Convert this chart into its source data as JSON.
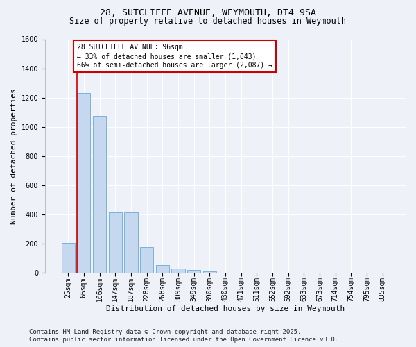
{
  "title_line1": "28, SUTCLIFFE AVENUE, WEYMOUTH, DT4 9SA",
  "title_line2": "Size of property relative to detached houses in Weymouth",
  "xlabel": "Distribution of detached houses by size in Weymouth",
  "ylabel": "Number of detached properties",
  "categories": [
    "25sqm",
    "66sqm",
    "106sqm",
    "147sqm",
    "187sqm",
    "228sqm",
    "268sqm",
    "309sqm",
    "349sqm",
    "390sqm",
    "430sqm",
    "471sqm",
    "511sqm",
    "552sqm",
    "592sqm",
    "633sqm",
    "673sqm",
    "714sqm",
    "754sqm",
    "795sqm",
    "835sqm"
  ],
  "values": [
    205,
    1230,
    1075,
    415,
    415,
    175,
    50,
    30,
    18,
    10,
    0,
    0,
    0,
    0,
    0,
    0,
    0,
    0,
    0,
    0,
    0
  ],
  "bar_color": "#c5d8f0",
  "bar_edge_color": "#6aaad4",
  "vline_color": "#cc0000",
  "vline_xindex": 1,
  "ylim": [
    0,
    1600
  ],
  "yticks": [
    0,
    200,
    400,
    600,
    800,
    1000,
    1200,
    1400,
    1600
  ],
  "annotation_text_line1": "28 SUTCLIFFE AVENUE: 96sqm",
  "annotation_text_line2": "← 33% of detached houses are smaller (1,043)",
  "annotation_text_line3": "66% of semi-detached houses are larger (2,087) →",
  "annotation_box_color": "#cc0000",
  "footer_line1": "Contains HM Land Registry data © Crown copyright and database right 2025.",
  "footer_line2": "Contains public sector information licensed under the Open Government Licence v3.0.",
  "bg_color": "#eef2f8",
  "plot_bg_color": "#eef2f8",
  "grid_color": "#ffffff",
  "title_fontsize": 9.5,
  "subtitle_fontsize": 8.5,
  "axis_label_fontsize": 8,
  "tick_fontsize": 7,
  "annotation_fontsize": 7,
  "footer_fontsize": 6.5
}
